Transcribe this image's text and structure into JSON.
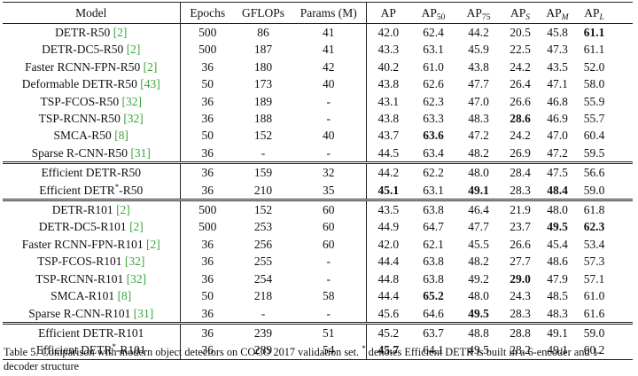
{
  "table": {
    "header": [
      [
        {
          "text": "Model"
        }
      ],
      [
        {
          "text": "Epochs"
        }
      ],
      [
        {
          "text": "GFLOPs"
        }
      ],
      [
        {
          "text": "Params (M)"
        }
      ],
      [
        {
          "text": "AP"
        }
      ],
      [
        {
          "text": "AP"
        },
        {
          "text": "50",
          "style": "sub"
        }
      ],
      [
        {
          "text": "AP"
        },
        {
          "text": "75",
          "style": "sub"
        }
      ],
      [
        {
          "text": "AP"
        },
        {
          "text": "S",
          "style": "subi"
        }
      ],
      [
        {
          "text": "AP"
        },
        {
          "text": "M",
          "style": "subi"
        }
      ],
      [
        {
          "text": "AP"
        },
        {
          "text": "L",
          "style": "subi"
        }
      ]
    ],
    "groups": [
      {
        "rows": [
          {
            "model": [
              {
                "text": "DETR-R50 "
              },
              {
                "text": "[2]",
                "style": "ref"
              }
            ],
            "cells": [
              "500",
              "86",
              "41",
              "42.0",
              "62.4",
              "44.2",
              "20.5",
              "45.8",
              "61.1"
            ],
            "bold": [
              8
            ]
          },
          {
            "model": [
              {
                "text": "DETR-DC5-R50 "
              },
              {
                "text": "[2]",
                "style": "ref"
              }
            ],
            "cells": [
              "500",
              "187",
              "41",
              "43.3",
              "63.1",
              "45.9",
              "22.5",
              "47.3",
              "61.1"
            ],
            "bold": []
          },
          {
            "model": [
              {
                "text": "Faster RCNN-FPN-R50 "
              },
              {
                "text": "[2]",
                "style": "ref"
              }
            ],
            "cells": [
              "36",
              "180",
              "42",
              "40.2",
              "61.0",
              "43.8",
              "24.2",
              "43.5",
              "52.0"
            ],
            "bold": []
          },
          {
            "model": [
              {
                "text": "Deformable DETR-R50 "
              },
              {
                "text": "[43]",
                "style": "ref"
              }
            ],
            "cells": [
              "50",
              "173",
              "40",
              "43.8",
              "62.6",
              "47.7",
              "26.4",
              "47.1",
              "58.0"
            ],
            "bold": []
          },
          {
            "model": [
              {
                "text": "TSP-FCOS-R50 "
              },
              {
                "text": "[32]",
                "style": "ref"
              }
            ],
            "cells": [
              "36",
              "189",
              "-",
              "43.1",
              "62.3",
              "47.0",
              "26.6",
              "46.8",
              "55.9"
            ],
            "bold": []
          },
          {
            "model": [
              {
                "text": "TSP-RCNN-R50 "
              },
              {
                "text": "[32]",
                "style": "ref"
              }
            ],
            "cells": [
              "36",
              "188",
              "-",
              "43.8",
              "63.3",
              "48.3",
              "28.6",
              "46.9",
              "55.7"
            ],
            "bold": [
              6
            ]
          },
          {
            "model": [
              {
                "text": "SMCA-R50 "
              },
              {
                "text": "[8]",
                "style": "ref"
              }
            ],
            "cells": [
              "50",
              "152",
              "40",
              "43.7",
              "63.6",
              "47.2",
              "24.2",
              "47.0",
              "60.4"
            ],
            "bold": [
              4
            ]
          },
          {
            "model": [
              {
                "text": "Sparse R-CNN-R50 "
              },
              {
                "text": "[31]",
                "style": "ref"
              }
            ],
            "cells": [
              "36",
              "-",
              "-",
              "44.5",
              "63.4",
              "48.2",
              "26.9",
              "47.2",
              "59.5"
            ],
            "bold": []
          }
        ]
      },
      {
        "rows": [
          {
            "model": [
              {
                "text": "Efficient DETR-R50"
              }
            ],
            "cells": [
              "36",
              "159",
              "32",
              "44.2",
              "62.2",
              "48.0",
              "28.4",
              "47.5",
              "56.6"
            ],
            "bold": []
          },
          {
            "model": [
              {
                "text": "Efficient DETR"
              },
              {
                "text": "*",
                "style": "sup"
              },
              {
                "text": "-R50"
              }
            ],
            "cells": [
              "36",
              "210",
              "35",
              "45.1",
              "63.1",
              "49.1",
              "28.3",
              "48.4",
              "59.0"
            ],
            "bold": [
              3,
              5,
              7
            ]
          }
        ]
      },
      {
        "rows": [
          {
            "model": [
              {
                "text": "DETR-R101 "
              },
              {
                "text": "[2]",
                "style": "ref"
              }
            ],
            "cells": [
              "500",
              "152",
              "60",
              "43.5",
              "63.8",
              "46.4",
              "21.9",
              "48.0",
              "61.8"
            ],
            "bold": []
          },
          {
            "model": [
              {
                "text": "DETR-DC5-R101 "
              },
              {
                "text": "[2]",
                "style": "ref"
              }
            ],
            "cells": [
              "500",
              "253",
              "60",
              "44.9",
              "64.7",
              "47.7",
              "23.7",
              "49.5",
              "62.3"
            ],
            "bold": [
              7,
              8
            ]
          },
          {
            "model": [
              {
                "text": "Faster RCNN-FPN-R101 "
              },
              {
                "text": "[2]",
                "style": "ref"
              }
            ],
            "cells": [
              "36",
              "256",
              "60",
              "42.0",
              "62.1",
              "45.5",
              "26.6",
              "45.4",
              "53.4"
            ],
            "bold": []
          },
          {
            "model": [
              {
                "text": "TSP-FCOS-R101 "
              },
              {
                "text": "[32]",
                "style": "ref"
              }
            ],
            "cells": [
              "36",
              "255",
              "-",
              "44.4",
              "63.8",
              "48.2",
              "27.7",
              "48.6",
              "57.3"
            ],
            "bold": []
          },
          {
            "model": [
              {
                "text": "TSP-RCNN-R101 "
              },
              {
                "text": "[32]",
                "style": "ref"
              }
            ],
            "cells": [
              "36",
              "254",
              "-",
              "44.8",
              "63.8",
              "49.2",
              "29.0",
              "47.9",
              "57.1"
            ],
            "bold": [
              6
            ]
          },
          {
            "model": [
              {
                "text": "SMCA-R101 "
              },
              {
                "text": "[8]",
                "style": "ref"
              }
            ],
            "cells": [
              "50",
              "218",
              "58",
              "44.4",
              "65.2",
              "48.0",
              "24.3",
              "48.5",
              "61.0"
            ],
            "bold": [
              4
            ]
          },
          {
            "model": [
              {
                "text": "Sparse R-CNN-R101 "
              },
              {
                "text": "[31]",
                "style": "ref"
              }
            ],
            "cells": [
              "36",
              "-",
              "-",
              "45.6",
              "64.6",
              "49.5",
              "28.3",
              "48.3",
              "61.6"
            ],
            "bold": [
              5
            ]
          }
        ]
      },
      {
        "rows": [
          {
            "model": [
              {
                "text": "Efficient DETR-R101"
              }
            ],
            "cells": [
              "36",
              "239",
              "51",
              "45.2",
              "63.7",
              "48.8",
              "28.8",
              "49.1",
              "59.0"
            ],
            "bold": []
          },
          {
            "model": [
              {
                "text": "Efficient DETR"
              },
              {
                "text": "*",
                "style": "sup"
              },
              {
                "text": "-R101"
              }
            ],
            "cells": [
              "36",
              "289",
              "54",
              "45.7",
              "64.1",
              "49.5",
              "28.2",
              "49.1",
              "60.2"
            ],
            "bold": [
              3
            ]
          }
        ]
      }
    ],
    "caption": [
      {
        "text": "Table 5. Comparison with modern object detectors on COCO 2017 validation set. "
      },
      {
        "text": "*",
        "style": "sup"
      },
      {
        "text": " denotes Efficient DETR is built in a 6-encoder and 1-decoder structure"
      }
    ]
  }
}
